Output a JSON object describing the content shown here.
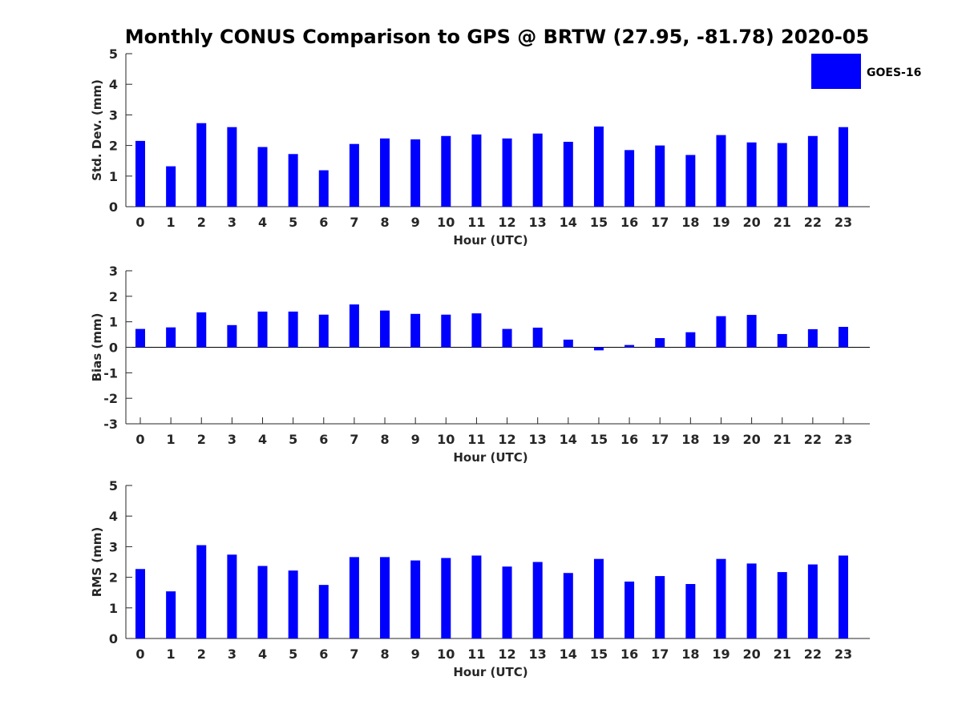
{
  "chart_data": {
    "title": "Monthly CONUS Comparison to GPS @ BRTW (27.95, -81.78) 2020-05",
    "legend": {
      "label": "GOES-16",
      "color": "#0000ff",
      "placement": "top-right"
    },
    "panels": [
      {
        "type": "bar",
        "xlabel": "Hour (UTC)",
        "ylabel": "Std. Dev. (mm)",
        "ylim": [
          0,
          5
        ],
        "yticks": [
          0,
          1,
          2,
          3,
          4,
          5
        ],
        "categories": [
          "0",
          "1",
          "2",
          "3",
          "4",
          "5",
          "6",
          "7",
          "8",
          "9",
          "10",
          "11",
          "12",
          "13",
          "14",
          "15",
          "16",
          "17",
          "18",
          "19",
          "20",
          "21",
          "22",
          "23"
        ],
        "values": [
          2.15,
          1.32,
          2.73,
          2.6,
          1.95,
          1.72,
          1.19,
          2.05,
          2.23,
          2.2,
          2.31,
          2.36,
          2.23,
          2.39,
          2.12,
          2.62,
          1.85,
          2.0,
          1.69,
          2.34,
          2.1,
          2.08,
          2.31,
          2.6
        ],
        "grid": false
      },
      {
        "type": "bar",
        "xlabel": "Hour (UTC)",
        "ylabel": "Bias (mm)",
        "ylim": [
          -3,
          3
        ],
        "yticks": [
          -3,
          -2,
          -1,
          0,
          1,
          2,
          3
        ],
        "categories": [
          "0",
          "1",
          "2",
          "3",
          "4",
          "5",
          "6",
          "7",
          "8",
          "9",
          "10",
          "11",
          "12",
          "13",
          "14",
          "15",
          "16",
          "17",
          "18",
          "19",
          "20",
          "21",
          "22",
          "23"
        ],
        "values": [
          0.72,
          0.78,
          1.37,
          0.87,
          1.4,
          1.4,
          1.28,
          1.68,
          1.44,
          1.31,
          1.28,
          1.33,
          0.72,
          0.77,
          0.3,
          -0.12,
          0.09,
          0.36,
          0.59,
          1.22,
          1.27,
          0.52,
          0.71,
          0.8
        ],
        "grid": false
      },
      {
        "type": "bar",
        "xlabel": "Hour (UTC)",
        "ylabel": "RMS (mm)",
        "ylim": [
          0,
          5
        ],
        "yticks": [
          0,
          1,
          2,
          3,
          4,
          5
        ],
        "categories": [
          "0",
          "1",
          "2",
          "3",
          "4",
          "5",
          "6",
          "7",
          "8",
          "9",
          "10",
          "11",
          "12",
          "13",
          "14",
          "15",
          "16",
          "17",
          "18",
          "19",
          "20",
          "21",
          "22",
          "23"
        ],
        "values": [
          2.27,
          1.54,
          3.05,
          2.74,
          2.37,
          2.22,
          1.75,
          2.66,
          2.66,
          2.55,
          2.63,
          2.71,
          2.35,
          2.5,
          2.14,
          2.6,
          1.86,
          2.04,
          1.78,
          2.6,
          2.45,
          2.17,
          2.42,
          2.71
        ],
        "grid": false
      }
    ]
  }
}
